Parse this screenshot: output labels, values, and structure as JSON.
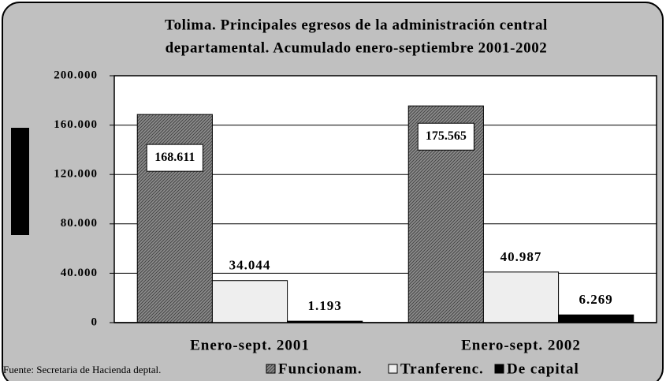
{
  "chart_data": {
    "type": "bar",
    "title": [
      "Tolima. Principales egresos de la administración central",
      "departamental. Acumulado enero-septiembre 2001-2002"
    ],
    "categories": [
      "Enero-sept. 2001",
      "Enero-sept. 2002"
    ],
    "series": [
      {
        "name": "Funcionam.",
        "color": "#8c8c8c",
        "values": [
          168611,
          175565
        ],
        "value_labels": [
          "168.611",
          "175.565"
        ]
      },
      {
        "name": "Tranferenc.",
        "color": "#eeeeee",
        "values": [
          34044,
          40987
        ],
        "value_labels": [
          "34.044",
          "40.987"
        ]
      },
      {
        "name": "De capital",
        "color": "#000000",
        "values": [
          1193,
          6269
        ],
        "value_labels": [
          "1.193",
          "6.269"
        ]
      }
    ],
    "ylim": [
      0,
      200000
    ],
    "yticks": [
      {
        "value": 0,
        "label": "0"
      },
      {
        "value": 40000,
        "label": "40.000"
      },
      {
        "value": 80000,
        "label": "80.000"
      },
      {
        "value": 120000,
        "label": "120.000"
      },
      {
        "value": 160000,
        "label": "160.000"
      },
      {
        "value": 200000,
        "label": "200.000"
      }
    ],
    "grid": true,
    "source": "Fuente: Secretaria de Hacienda deptal."
  }
}
